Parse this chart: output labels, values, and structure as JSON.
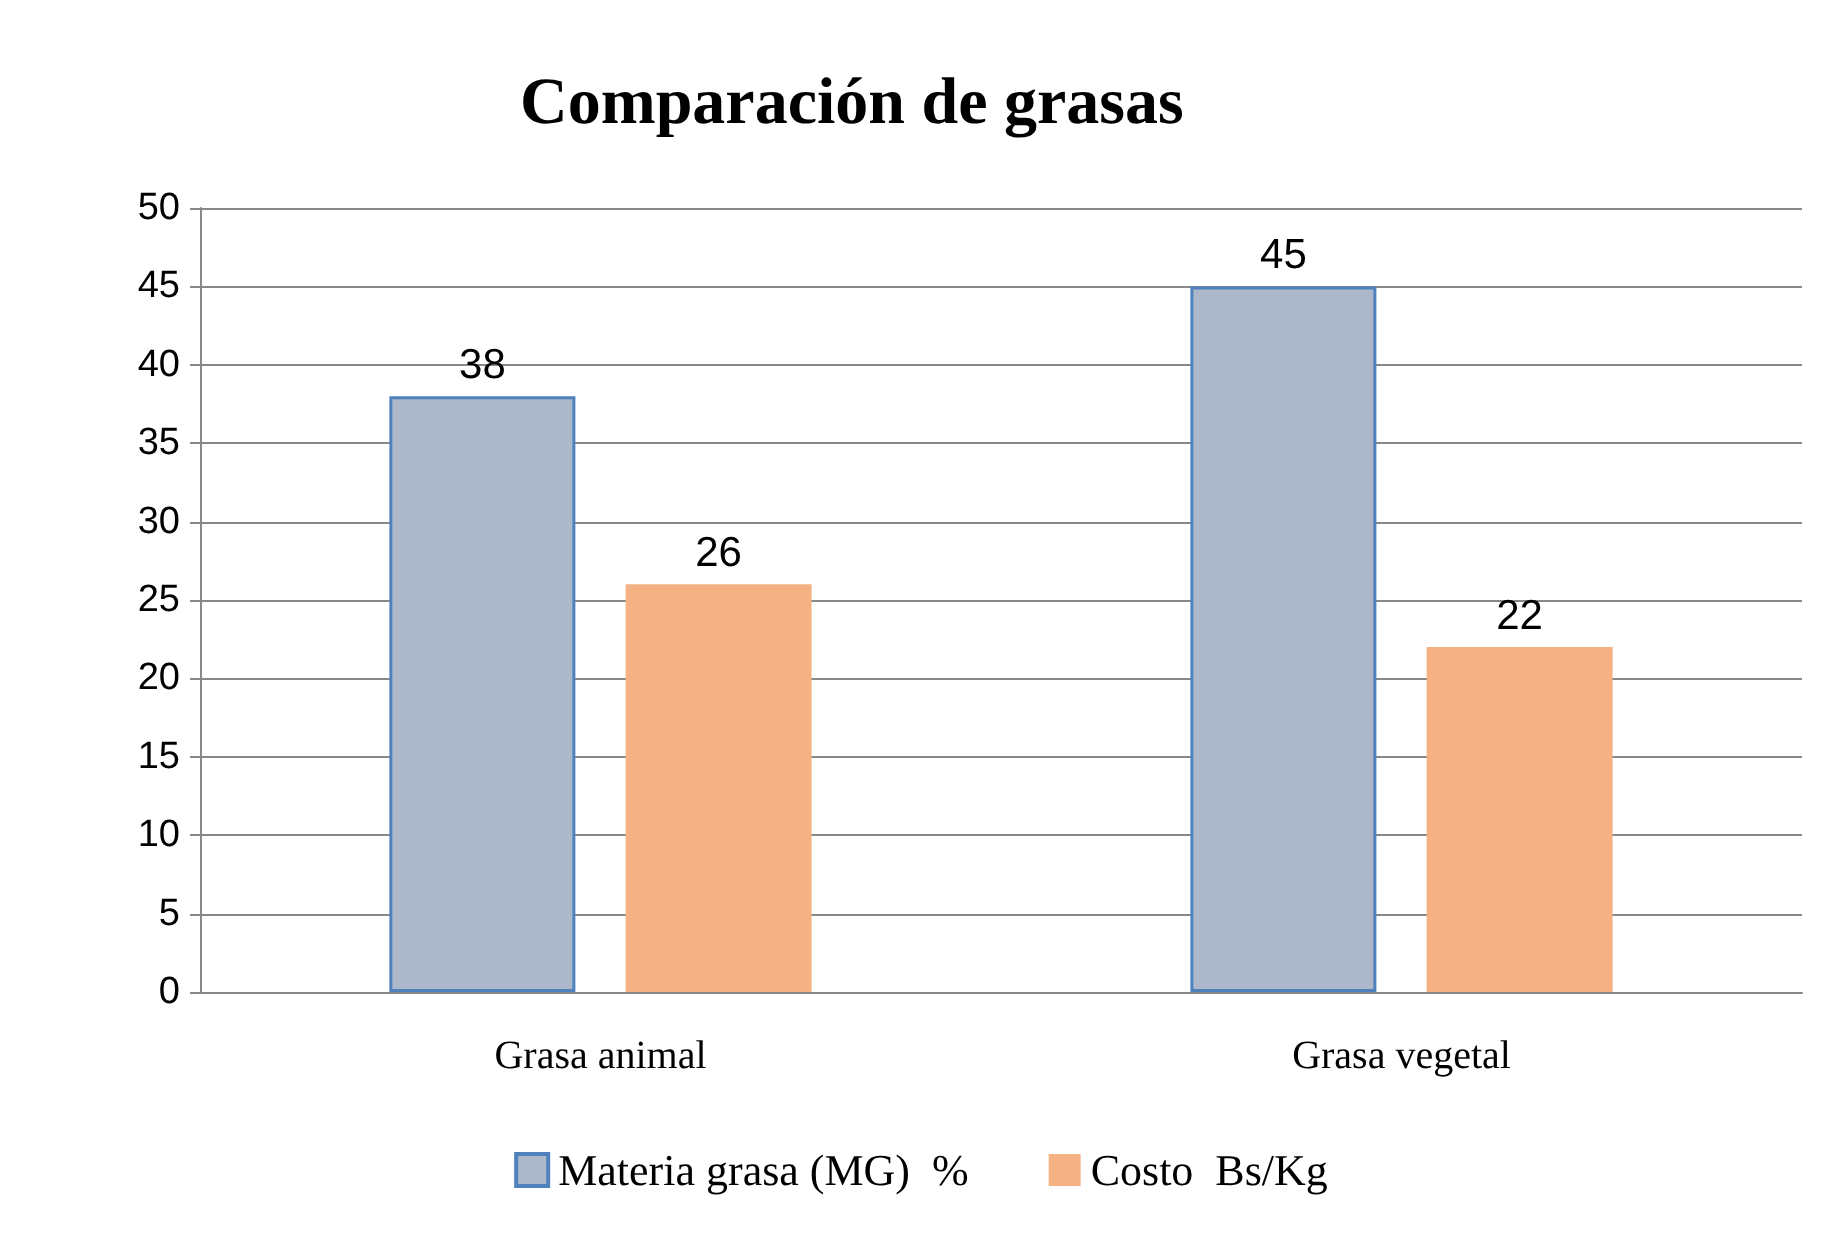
{
  "chart_data": {
    "type": "bar",
    "title": "Comparación de grasas",
    "categories": [
      "Grasa animal",
      "Grasa vegetal"
    ],
    "series": [
      {
        "name": "Materia grasa (MG)  %",
        "color": "#adb9ca",
        "values": [
          38,
          45
        ]
      },
      {
        "name": "Costo  Bs/Kg",
        "color": "#f4b183",
        "values": [
          26,
          22
        ]
      }
    ],
    "ylim": [
      0,
      50
    ],
    "yticks": [
      0,
      5,
      10,
      15,
      20,
      25,
      30,
      35,
      40,
      45,
      50
    ],
    "grid": "y",
    "legend": "bottom",
    "data_labels": true
  }
}
